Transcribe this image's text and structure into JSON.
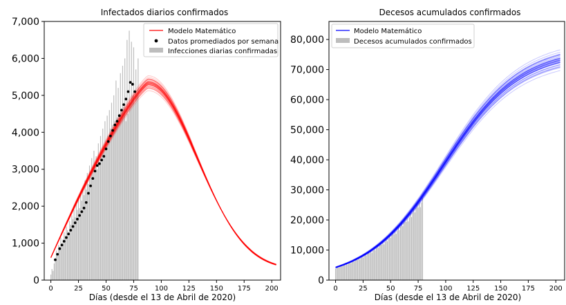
{
  "chart_data": [
    {
      "type": "bar",
      "title": "Infectados diarios confirmados",
      "xlabel": "Días (desde el 13 de Abril de 2020)",
      "ylabel": "",
      "xlim": [
        -6,
        208
      ],
      "ylim": [
        0,
        7000
      ],
      "x_ticks": [
        0,
        25,
        50,
        75,
        100,
        125,
        150,
        175,
        200
      ],
      "y_ticks": [
        0,
        1000,
        2000,
        3000,
        4000,
        5000,
        6000,
        7000
      ],
      "x_tick_labels": [
        "0",
        "25",
        "50",
        "75",
        "100",
        "125",
        "150",
        "175",
        "200"
      ],
      "y_tick_labels": [
        "0",
        "1,000",
        "2,000",
        "3,000",
        "4,000",
        "5,000",
        "6,000",
        "7,000"
      ],
      "grid": false,
      "legend_position": "top-right",
      "legend": [
        "Modelo Matemático",
        "Datos promediados por semana",
        "Infecciones diarias confirmadas"
      ],
      "colors": {
        "model": "#ff0000",
        "points": "#000000",
        "bars": "#bdbdbd"
      },
      "series": [
        {
          "name": "Infecciones diarias confirmadas",
          "type": "bar",
          "x": [
            0,
            1,
            2,
            3,
            4,
            5,
            6,
            7,
            8,
            9,
            10,
            11,
            12,
            13,
            14,
            15,
            16,
            17,
            18,
            19,
            20,
            21,
            22,
            23,
            24,
            25,
            26,
            27,
            28,
            29,
            30,
            31,
            32,
            33,
            34,
            35,
            36,
            37,
            38,
            39,
            40,
            41,
            42,
            43,
            44,
            45,
            46,
            47,
            48,
            49,
            50,
            51,
            52,
            53,
            54,
            55,
            56,
            57,
            58,
            59,
            60,
            61,
            62,
            63,
            64,
            65,
            66,
            67,
            68,
            69,
            70,
            71,
            72,
            73,
            74,
            75,
            76,
            77,
            78,
            79
          ],
          "values": [
            150,
            300,
            250,
            450,
            600,
            800,
            700,
            950,
            900,
            1150,
            1000,
            1100,
            1300,
            1200,
            1450,
            1350,
            1300,
            1600,
            1500,
            1750,
            1650,
            1900,
            1700,
            2050,
            1900,
            2200,
            1950,
            2350,
            2150,
            2450,
            2300,
            2700,
            2450,
            2900,
            2600,
            3100,
            2800,
            3300,
            2950,
            3500,
            3100,
            3350,
            3000,
            3700,
            3200,
            3900,
            3400,
            4100,
            3550,
            4300,
            3700,
            4450,
            3900,
            4600,
            4100,
            4800,
            4200,
            5000,
            4300,
            5400,
            4400,
            5200,
            4500,
            5600,
            4600,
            5800,
            4700,
            6000,
            4300,
            6500,
            4500,
            6750,
            4800,
            6450,
            5000,
            6300,
            4800,
            5700,
            5000,
            6000
          ]
        },
        {
          "name": "Datos promediados por semana",
          "type": "scatter",
          "x": [
            4,
            6,
            8,
            10,
            12,
            14,
            16,
            18,
            20,
            22,
            24,
            26,
            28,
            30,
            32,
            34,
            36,
            38,
            40,
            42,
            44,
            46,
            48,
            50,
            52,
            54,
            56,
            58,
            60,
            62,
            64,
            66,
            68,
            70,
            72,
            74,
            76
          ],
          "values": [
            550,
            700,
            850,
            950,
            1050,
            1150,
            1250,
            1350,
            1450,
            1550,
            1650,
            1750,
            1850,
            1950,
            2100,
            2350,
            2550,
            2750,
            2950,
            3100,
            3150,
            3250,
            3350,
            3550,
            3750,
            3900,
            4050,
            4200,
            4300,
            4450,
            4600,
            4750,
            4900,
            5100,
            5350,
            5300,
            5100
          ]
        },
        {
          "name": "Modelo Matemático",
          "type": "line",
          "model": {
            "peak_x": 88,
            "peak_y": 5330,
            "start_x": 0,
            "start_y": 610,
            "end_x": 204,
            "end_y": 230,
            "rise_k": 0.00057,
            "fall_k": 0.000245,
            "tail_k": 0.047
          },
          "band_spread": 0.04,
          "band_lines": 40
        }
      ]
    },
    {
      "type": "bar",
      "title": "Decesos acumulados confirmados",
      "xlabel": "Días (desde el 13 de Abril de 2020)",
      "ylabel": "",
      "xlim": [
        -6,
        208
      ],
      "ylim": [
        0,
        86000
      ],
      "x_ticks": [
        0,
        25,
        50,
        75,
        100,
        125,
        150,
        175,
        200
      ],
      "y_ticks": [
        0,
        10000,
        20000,
        30000,
        40000,
        50000,
        60000,
        70000,
        80000
      ],
      "x_tick_labels": [
        "0",
        "25",
        "50",
        "75",
        "100",
        "125",
        "150",
        "175",
        "200"
      ],
      "y_tick_labels": [
        "0",
        "10,000",
        "20,000",
        "30,000",
        "40,000",
        "50,000",
        "60,000",
        "70,000",
        "80,000"
      ],
      "grid": false,
      "legend_position": "top-left",
      "legend": [
        "Modelo Matemático",
        "Decesos acumulados confirmados"
      ],
      "colors": {
        "model": "#0000ff",
        "bars": "#bdbdbd"
      },
      "series": [
        {
          "name": "Decesos acumulados confirmados",
          "type": "bar",
          "x_start": 0,
          "x_end": 79,
          "values_rule": "cumulative",
          "value_at_end": 28500
        },
        {
          "name": "Modelo Matemático",
          "type": "line",
          "model": {
            "L": 76500,
            "k": 0.029,
            "x0": 98,
            "start_y": 600,
            "end_y": 75000
          },
          "band_spread": 0.05,
          "band_lines": 40
        }
      ]
    }
  ]
}
